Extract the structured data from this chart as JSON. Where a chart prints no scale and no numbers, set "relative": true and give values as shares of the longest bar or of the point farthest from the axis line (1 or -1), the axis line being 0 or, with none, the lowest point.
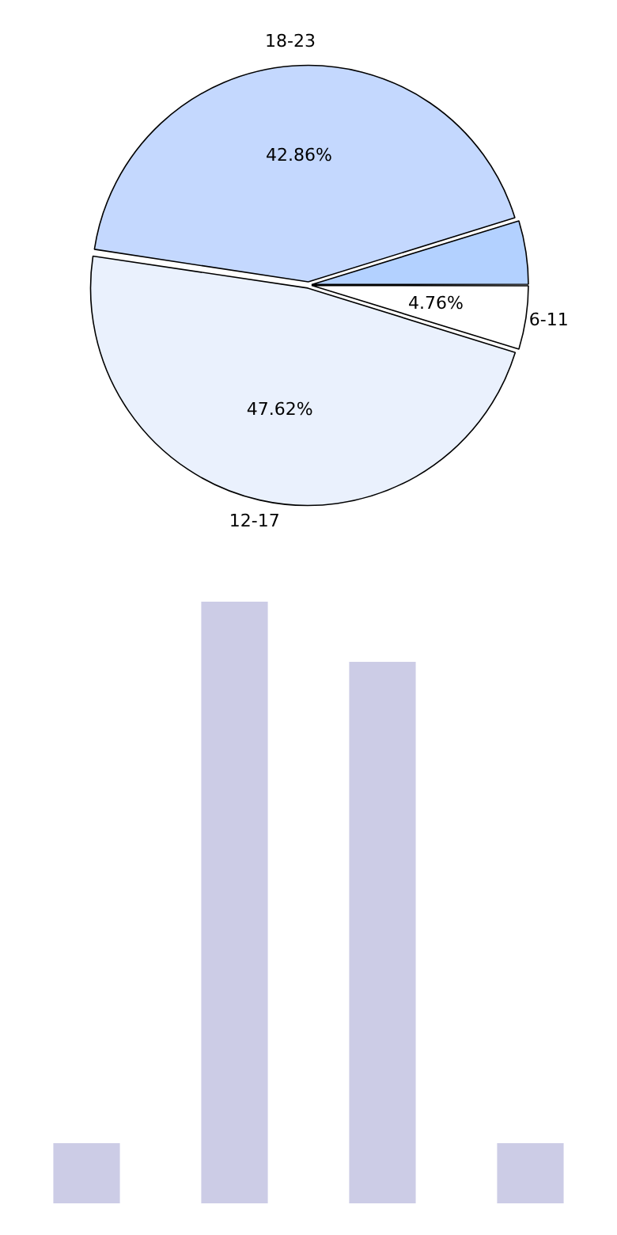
{
  "chart_data": [
    {
      "type": "pie",
      "categories": [
        "6-11",
        "12-17",
        "18-23",
        null
      ],
      "values": [
        4.76,
        47.62,
        42.86,
        4.76
      ],
      "colors": [
        "#ffffff",
        "#eaf1fd",
        "#c4d8fe",
        "#b3d1ff"
      ],
      "value_labels": [
        "4.76%",
        "47.62%",
        "42.86%",
        null
      ]
    },
    {
      "type": "bar",
      "relative": true,
      "categories": [
        null,
        null,
        null,
        null
      ],
      "values": [
        0.1,
        1,
        0.9,
        0.1
      ],
      "color": "#cccce6"
    }
  ]
}
